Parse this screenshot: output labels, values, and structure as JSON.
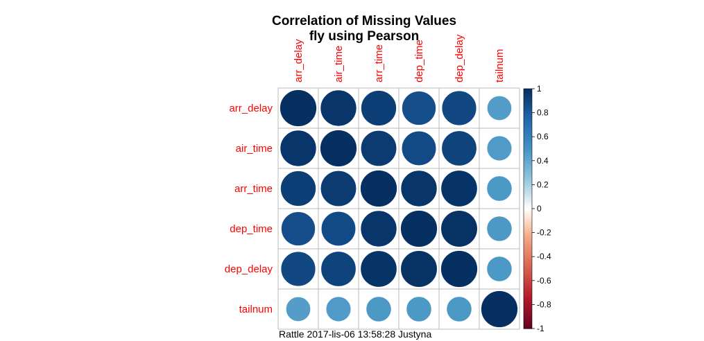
{
  "chart_data": {
    "type": "heatmap",
    "title": "Correlation of Missing Values",
    "subtitle": "fly using Pearson",
    "variables": [
      "arr_delay",
      "air_time",
      "arr_time",
      "dep_time",
      "dep_delay",
      "tailnum"
    ],
    "matrix": [
      [
        1.0,
        0.97,
        0.93,
        0.86,
        0.89,
        0.45
      ],
      [
        0.97,
        1.0,
        0.95,
        0.88,
        0.91,
        0.46
      ],
      [
        0.93,
        0.95,
        1.0,
        0.97,
        0.98,
        0.47
      ],
      [
        0.86,
        0.88,
        0.97,
        1.0,
        0.99,
        0.47
      ],
      [
        0.89,
        0.91,
        0.98,
        0.99,
        1.0,
        0.47
      ],
      [
        0.45,
        0.46,
        0.47,
        0.47,
        0.47,
        1.0
      ]
    ],
    "legend": {
      "range": [
        -1,
        1
      ],
      "ticks": [
        "1",
        "0.8",
        "0.6",
        "0.4",
        "0.2",
        "0",
        "-0.2",
        "-0.4",
        "-0.6",
        "-0.8",
        "-1"
      ],
      "placement": "right"
    },
    "grid": true
  },
  "caption": "Rattle 2017-lis-06 13:58:28 Justyna"
}
